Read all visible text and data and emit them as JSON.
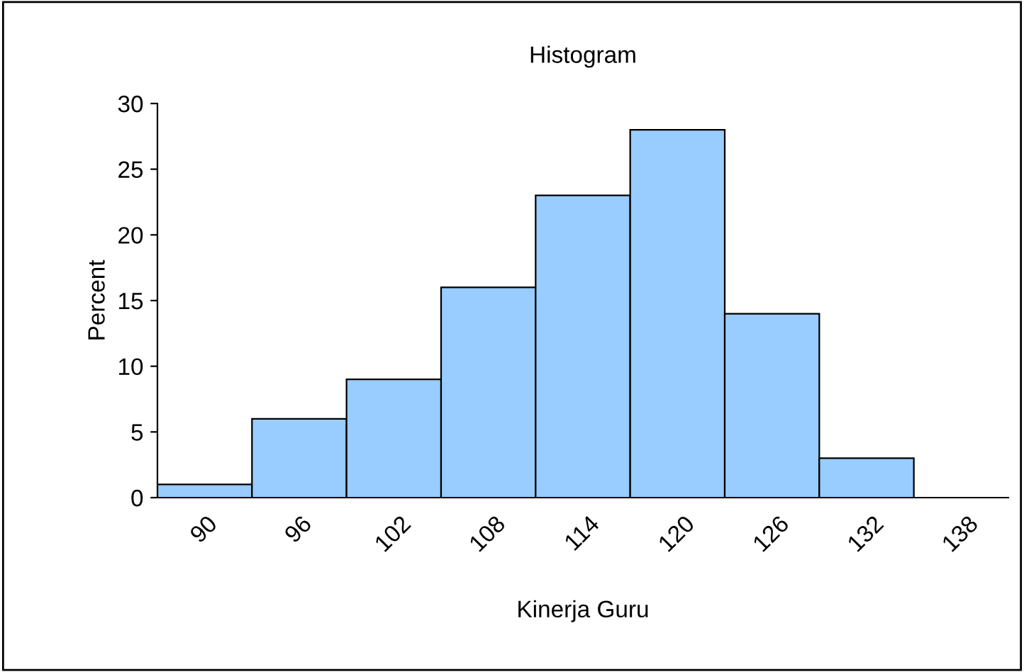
{
  "chart_data": {
    "type": "bar",
    "title": "Histogram",
    "xlabel": "Kinerja Guru",
    "ylabel": "Percent",
    "categories": [
      "90",
      "96",
      "102",
      "108",
      "114",
      "120",
      "126",
      "132",
      "138"
    ],
    "values": [
      1,
      6,
      9,
      16,
      23,
      28,
      14,
      3,
      null
    ],
    "color": "#99ccff",
    "ylim": [
      0,
      30
    ],
    "yticks": [
      0,
      5,
      10,
      15,
      20,
      25,
      30
    ],
    "grid": false,
    "legend": false
  }
}
